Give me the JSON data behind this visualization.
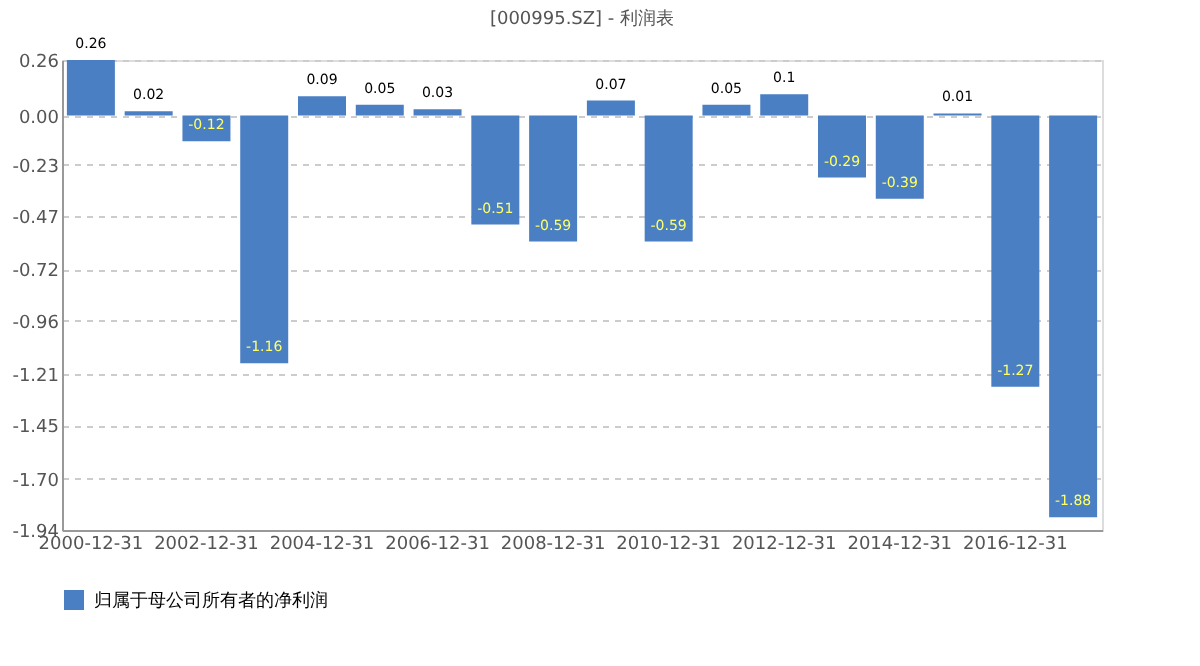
{
  "chart_data": {
    "type": "bar",
    "title": "[000995.SZ] - 利润表",
    "categories": [
      "2000-12-31",
      null,
      "2002-12-31",
      null,
      "2004-12-31",
      null,
      "2006-12-31",
      null,
      "2008-12-31",
      null,
      "2010-12-31",
      null,
      "2012-12-31",
      null,
      "2014-12-31",
      null,
      "2016-12-31",
      null
    ],
    "series": [
      {
        "name": "归属于母公司所有者的净利润",
        "color": "#4a7fc4",
        "values": [
          0.26,
          0.02,
          -0.12,
          -1.16,
          0.09,
          0.05,
          0.03,
          -0.51,
          -0.59,
          0.07,
          -0.59,
          0.05,
          0.1,
          -0.29,
          -0.39,
          0.01,
          -1.27,
          -1.88
        ]
      }
    ],
    "ylim": [
      -1.94,
      0.26
    ],
    "yticks": [
      0.26,
      {
        "value": 0,
        "label": "0.00"
      },
      {
        "value": -0.23,
        "label": "-0.23"
      },
      {
        "value": -0.47,
        "label": "-0.47"
      },
      {
        "value": -0.72,
        "label": "-0.72"
      },
      {
        "value": -0.96,
        "label": "-0.96"
      },
      {
        "value": -1.21,
        "label": "-1.21"
      },
      {
        "value": -1.45,
        "label": "-1.45"
      },
      {
        "value": -1.7,
        "label": "-1.70"
      },
      {
        "value": -1.94,
        "label": "-1.94"
      }
    ],
    "grid": "y",
    "legend": "bottom",
    "data_labels": true
  }
}
